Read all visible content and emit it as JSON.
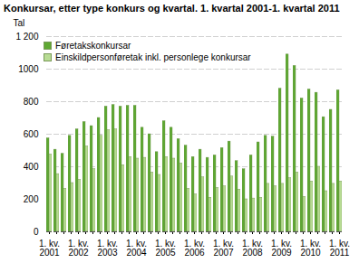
{
  "chart_data": {
    "type": "bar",
    "title": "Konkursar, etter type konkurs og kvartal. 1. kvartal 2001-1. kvartal 2011",
    "y_label": "Tal",
    "categories": [
      "1. kv.\n2001",
      null,
      null,
      null,
      "1. kv.\n2002",
      null,
      null,
      null,
      "1. kv.\n2003",
      null,
      null,
      null,
      "1. kv.\n2004",
      null,
      null,
      null,
      "1. kv.\n2005",
      null,
      null,
      null,
      "1. kv.\n2006",
      null,
      null,
      null,
      "1. kv.\n2007",
      null,
      null,
      null,
      "1. kv.\n2008",
      null,
      null,
      null,
      "1. kv.\n2009",
      null,
      null,
      null,
      "1. kv.\n2010",
      null,
      null,
      null,
      "1. kv.\n2011"
    ],
    "series": [
      {
        "name": "Føretakskonkursar",
        "color": "#5ea832",
        "values": [
          575,
          505,
          480,
          590,
          630,
          675,
          650,
          700,
          770,
          780,
          770,
          775,
          775,
          640,
          600,
          490,
          680,
          640,
          570,
          530,
          460,
          505,
          455,
          470,
          515,
          555,
          435,
          385,
          470,
          550,
          590,
          585,
          880,
          1090,
          1020,
          820,
          875,
          855,
          705,
          750,
          870
        ]
      },
      {
        "name": "Einskildpersonføretak inkl. personlege konkursar",
        "color": "#b8dc94",
        "values": [
          475,
          355,
          265,
          300,
          320,
          525,
          385,
          590,
          625,
          630,
          410,
          460,
          450,
          455,
          365,
          350,
          460,
          450,
          420,
          265,
          230,
          335,
          210,
          270,
          280,
          340,
          260,
          200,
          205,
          210,
          295,
          280,
          295,
          330,
          365,
          215,
          310,
          400,
          250,
          295,
          310
        ]
      }
    ],
    "ylim": [
      0,
      1200
    ],
    "yticks": [
      0,
      200,
      400,
      600,
      800,
      1000,
      {
        "value": 1200,
        "label": "1 200"
      }
    ],
    "grid": true,
    "legend": "top-left"
  }
}
